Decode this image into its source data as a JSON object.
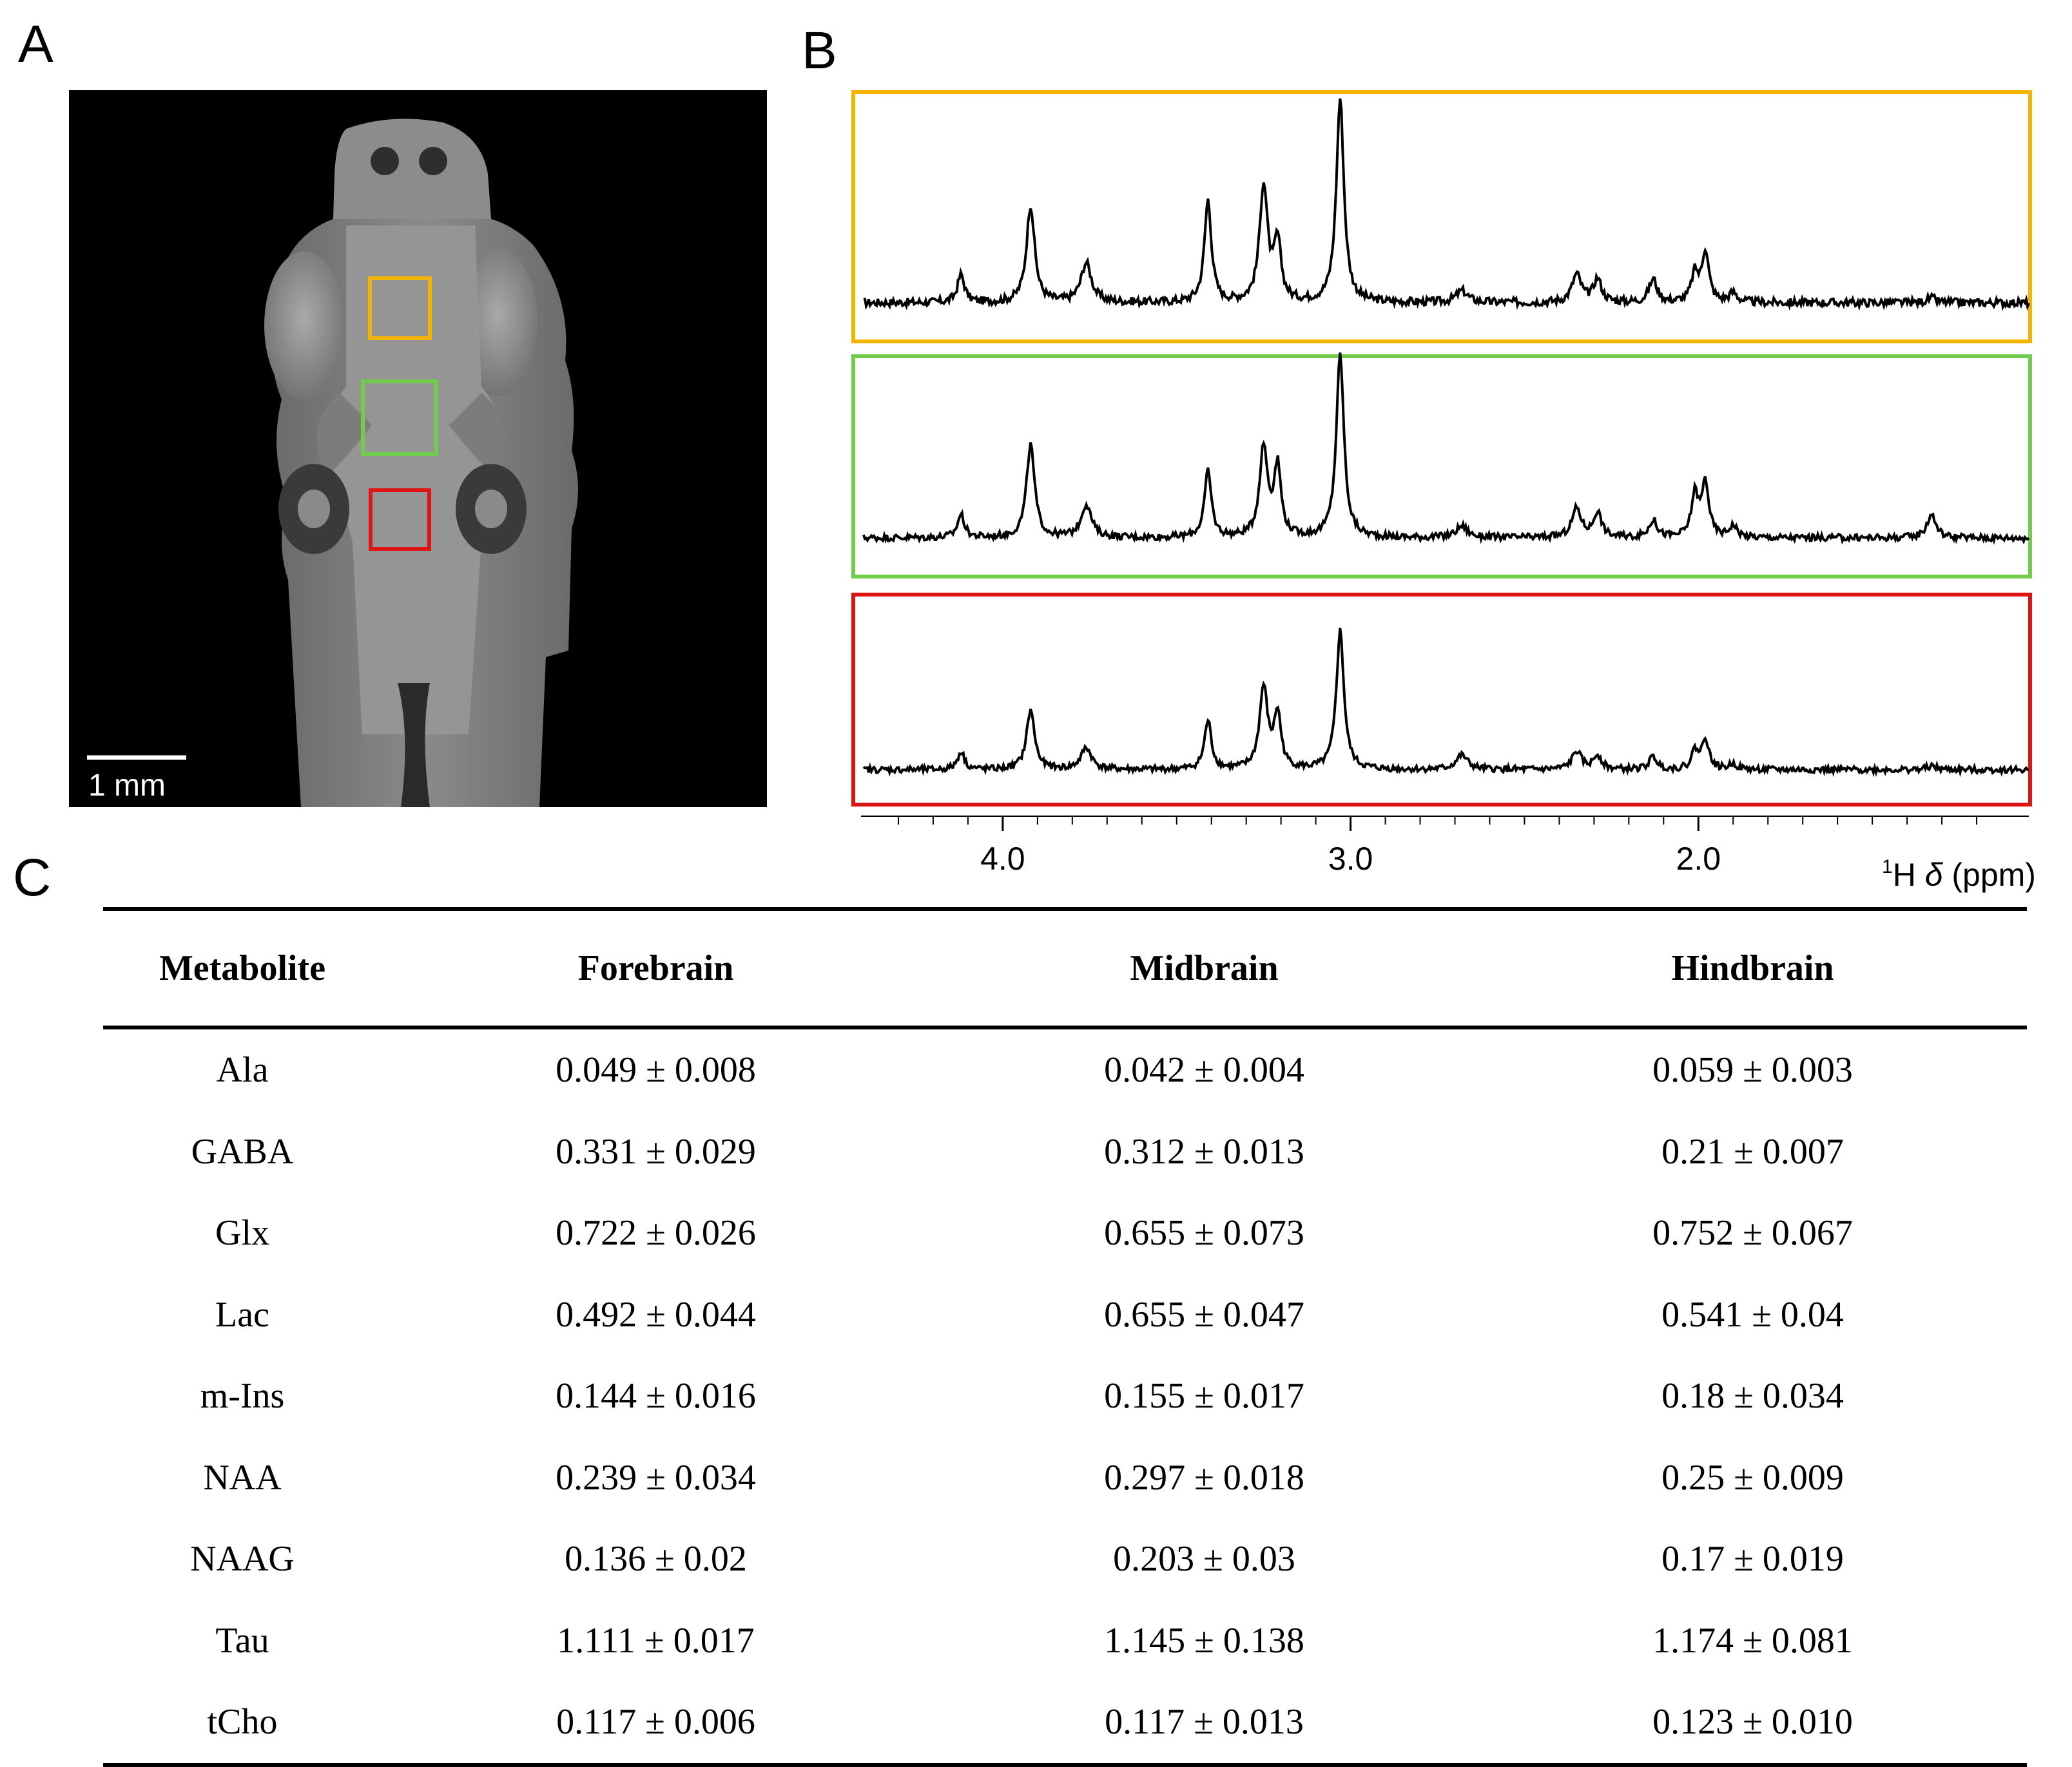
{
  "panels": {
    "a": "A",
    "b": "B",
    "c": "C"
  },
  "mri": {
    "scale_bar_label": "1 mm"
  },
  "regions": [
    {
      "name": "forebrain",
      "color": "#f5b400"
    },
    {
      "name": "midbrain",
      "color": "#72cc4c"
    },
    {
      "name": "hindbrain",
      "color": "#dd1515"
    }
  ],
  "spectra": {
    "x_axis_ticks": [
      "4.0",
      "3.0",
      "2.0"
    ],
    "x_axis_ticks_values": [
      4.0,
      3.0,
      2.0
    ],
    "xlim": [
      4.4,
      1.05
    ],
    "x_label_sup": "1",
    "x_label_main": "H ",
    "x_label_delta": "δ",
    "x_label_unit": " (ppm)"
  },
  "chart_data": {
    "type": "line",
    "title": "",
    "xlabel": "1H δ (ppm)",
    "ylabel": "",
    "xlim": [
      4.4,
      1.05
    ],
    "x_ticks": [
      4.0,
      3.0,
      2.0
    ],
    "peaks_ppm": [
      4.12,
      3.92,
      3.76,
      3.41,
      3.25,
      3.21,
      3.03,
      2.68,
      2.35,
      2.29,
      2.13,
      2.01,
      1.98,
      1.9,
      1.33
    ],
    "series": [
      {
        "name": "Forebrain",
        "color": "#f5b400",
        "heights": [
          0.12,
          0.42,
          0.17,
          0.44,
          0.5,
          0.25,
          0.88,
          0.05,
          0.12,
          0.1,
          0.1,
          0.12,
          0.22,
          0.04,
          0.02
        ]
      },
      {
        "name": "Midbrain",
        "color": "#72cc4c",
        "heights": [
          0.12,
          0.48,
          0.17,
          0.34,
          0.46,
          0.36,
          0.95,
          0.06,
          0.15,
          0.13,
          0.09,
          0.22,
          0.28,
          0.06,
          0.12
        ]
      },
      {
        "name": "Hindbrain",
        "color": "#dd1515",
        "heights": [
          0.1,
          0.33,
          0.12,
          0.27,
          0.45,
          0.3,
          0.77,
          0.08,
          0.1,
          0.08,
          0.07,
          0.1,
          0.17,
          0.03,
          0.02
        ]
      }
    ]
  },
  "table": {
    "headers": [
      "Metabolite",
      "Forebrain",
      "Midbrain",
      "Hindbrain"
    ],
    "rows": [
      [
        "Ala",
        "0.049 ± 0.008",
        "0.042 ± 0.004",
        "0.059 ± 0.003"
      ],
      [
        "GABA",
        "0.331 ± 0.029",
        "0.312 ± 0.013",
        "0.21 ± 0.007"
      ],
      [
        "Glx",
        "0.722 ± 0.026",
        "0.655 ± 0.073",
        "0.752 ± 0.067"
      ],
      [
        "Lac",
        "0.492 ± 0.044",
        "0.655 ± 0.047",
        "0.541 ± 0.04"
      ],
      [
        "m-Ins",
        "0.144 ± 0.016",
        "0.155 ± 0.017",
        "0.18 ± 0.034"
      ],
      [
        "NAA",
        "0.239 ± 0.034",
        "0.297 ± 0.018",
        "0.25 ± 0.009"
      ],
      [
        "NAAG",
        "0.136 ± 0.02",
        "0.203 ± 0.03",
        "0.17 ± 0.019"
      ],
      [
        "Tau",
        "1.111 ± 0.017",
        "1.145 ± 0.138",
        "1.174 ± 0.081"
      ],
      [
        "tCho",
        "0.117 ± 0.006",
        "0.117 ± 0.013",
        "0.123 ± 0.010"
      ]
    ]
  }
}
